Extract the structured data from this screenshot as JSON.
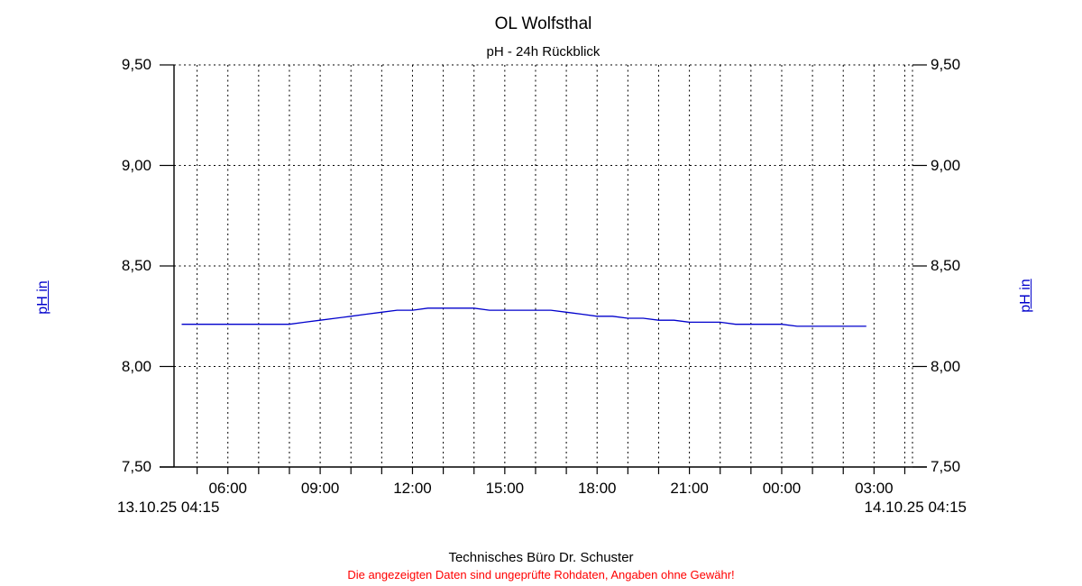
{
  "header": {
    "title": "OL Wolfsthal",
    "subtitle": "pH - 24h Rückblick"
  },
  "axes": {
    "y_left_title": "pH in",
    "y_right_title": "pH in",
    "y_tick_labels": [
      "9,50",
      "9,00",
      "8,50",
      "8,00",
      "7,50"
    ],
    "y_tick_values": [
      9.5,
      9.0,
      8.5,
      8.0,
      7.5
    ],
    "x_tick_labels": [
      "06:00",
      "09:00",
      "12:00",
      "15:00",
      "18:00",
      "21:00",
      "00:00",
      "03:00"
    ],
    "x_start_label": "13.10.25 04:15",
    "x_end_label": "14.10.25 04:15"
  },
  "footer": {
    "company": "Technisches Büro Dr. Schuster",
    "disclaimer": "Die angezeigten Daten sind ungeprüfte Rohdaten, Angaben ohne Gewähr!"
  },
  "colors": {
    "background": "#ffffff",
    "text": "#000000",
    "grid": "#000000",
    "series": "#0000cc",
    "axis_title": "#0000cc",
    "disclaimer": "#ff0000"
  },
  "chart_data": {
    "type": "line",
    "title": "OL Wolfsthal",
    "subtitle": "pH - 24h Rückblick",
    "xlabel": "",
    "ylabel": "pH in",
    "ylim": [
      7.5,
      9.5
    ],
    "y_tick_step": 0.5,
    "x_start": "13.10.25 04:15",
    "x_end": "14.10.25 04:15",
    "x_span_hours": 24,
    "x_major_tick_interval_hours": 3,
    "x_minor_tick_interval_hours": 1,
    "grid": "dashed; vertical gridline every hour, horizontal gridline every 0.5 pH",
    "legend": "none",
    "series": [
      {
        "name": "pH",
        "color": "#0000cc",
        "points": [
          [
            "04:30",
            8.21
          ],
          [
            "05:00",
            8.21
          ],
          [
            "05:30",
            8.21
          ],
          [
            "06:00",
            8.21
          ],
          [
            "06:30",
            8.21
          ],
          [
            "07:00",
            8.21
          ],
          [
            "07:30",
            8.21
          ],
          [
            "08:00",
            8.21
          ],
          [
            "08:30",
            8.22
          ],
          [
            "09:00",
            8.23
          ],
          [
            "09:30",
            8.24
          ],
          [
            "10:00",
            8.25
          ],
          [
            "10:30",
            8.26
          ],
          [
            "11:00",
            8.27
          ],
          [
            "11:30",
            8.28
          ],
          [
            "12:00",
            8.28
          ],
          [
            "12:30",
            8.29
          ],
          [
            "13:00",
            8.29
          ],
          [
            "13:30",
            8.29
          ],
          [
            "14:00",
            8.29
          ],
          [
            "14:30",
            8.28
          ],
          [
            "15:00",
            8.28
          ],
          [
            "15:30",
            8.28
          ],
          [
            "16:00",
            8.28
          ],
          [
            "16:30",
            8.28
          ],
          [
            "17:00",
            8.27
          ],
          [
            "17:30",
            8.26
          ],
          [
            "18:00",
            8.25
          ],
          [
            "18:30",
            8.25
          ],
          [
            "19:00",
            8.24
          ],
          [
            "19:30",
            8.24
          ],
          [
            "20:00",
            8.23
          ],
          [
            "20:30",
            8.23
          ],
          [
            "21:00",
            8.22
          ],
          [
            "21:30",
            8.22
          ],
          [
            "22:00",
            8.22
          ],
          [
            "22:30",
            8.21
          ],
          [
            "23:00",
            8.21
          ],
          [
            "23:30",
            8.21
          ],
          [
            "00:00",
            8.21
          ],
          [
            "00:30",
            8.2
          ],
          [
            "01:00",
            8.2
          ],
          [
            "01:30",
            8.2
          ],
          [
            "02:00",
            8.2
          ],
          [
            "02:30",
            8.2
          ],
          [
            "02:45",
            8.2
          ]
        ]
      }
    ]
  }
}
